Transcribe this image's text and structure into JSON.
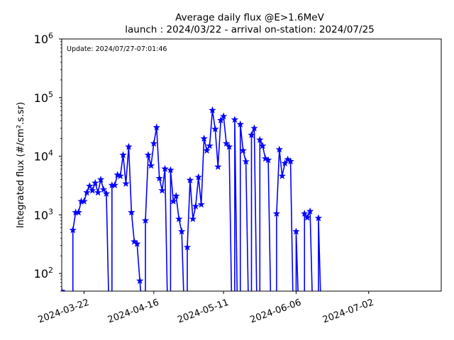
{
  "chart_data": {
    "type": "line",
    "title": "Average daily flux @E>1.6MeV",
    "subtitle": "launch : 2024/03/22 - arrival on-station: 2024/07/25",
    "ylabel": "Integrated flux (#/cm².s.sr)",
    "xlabel": "",
    "annotation": "Update: 2024/07/27-07:01:46",
    "y_scale": "log",
    "ylim": [
      50,
      1000000
    ],
    "xlim": [
      "2024-03-14",
      "2024-07-28"
    ],
    "x_ticks": [
      "2024-03-22",
      "2024-04-16",
      "2024-05-11",
      "2024-06-06",
      "2024-07-02"
    ],
    "y_ticks": [
      {
        "value": 100,
        "mantissa": "10",
        "exp": "2"
      },
      {
        "value": 1000,
        "mantissa": "10",
        "exp": "3"
      },
      {
        "value": 10000,
        "mantissa": "10",
        "exp": "4"
      },
      {
        "value": 100000,
        "mantissa": "10",
        "exp": "5"
      },
      {
        "value": 1000000,
        "mantissa": "10",
        "exp": "6"
      }
    ],
    "grid": false,
    "color": "#0000ff",
    "marker": "star",
    "series": [
      {
        "x": [
          "2024-03-14",
          "2024-03-17",
          "2024-03-18",
          "2024-03-19",
          "2024-03-20",
          "2024-03-21",
          "2024-03-22",
          "2024-03-23",
          "2024-03-24",
          "2024-03-25",
          "2024-03-26",
          "2024-03-27",
          "2024-03-28",
          "2024-03-29",
          "2024-03-30",
          "2024-03-31",
          "2024-04-01",
          "2024-04-02",
          "2024-04-03",
          "2024-04-04",
          "2024-04-05",
          "2024-04-06",
          "2024-04-07",
          "2024-04-08",
          "2024-04-09",
          "2024-04-10",
          "2024-04-11",
          "2024-04-12",
          "2024-04-13",
          "2024-04-14",
          "2024-04-15",
          "2024-04-16",
          "2024-04-17",
          "2024-04-18",
          "2024-04-19",
          "2024-04-20",
          "2024-04-21",
          "2024-04-22",
          "2024-04-23",
          "2024-04-24",
          "2024-04-25",
          "2024-04-26",
          "2024-04-27",
          "2024-04-28",
          "2024-04-29",
          "2024-04-30",
          "2024-05-01",
          "2024-05-02",
          "2024-05-03",
          "2024-05-04",
          "2024-05-05",
          "2024-05-06",
          "2024-05-07",
          "2024-05-08",
          "2024-05-09",
          "2024-05-10",
          "2024-05-11",
          "2024-05-12",
          "2024-05-13",
          "2024-05-14",
          "2024-05-15",
          "2024-05-16",
          "2024-05-17",
          "2024-05-18",
          "2024-05-19",
          "2024-05-20",
          "2024-05-21",
          "2024-05-22",
          "2024-05-23",
          "2024-05-24",
          "2024-05-25",
          "2024-05-26",
          "2024-05-27",
          "2024-05-28",
          "2024-05-29",
          "2024-05-30",
          "2024-05-31",
          "2024-06-01",
          "2024-06-02",
          "2024-06-03",
          "2024-06-04",
          "2024-06-05",
          "2024-06-06",
          "2024-06-07",
          "2024-06-08",
          "2024-06-09",
          "2024-06-10",
          "2024-06-11",
          "2024-06-12",
          "2024-06-13",
          "2024-06-14",
          "2024-06-15",
          "2024-06-16",
          "2024-06-17",
          "2024-06-18",
          "2024-06-19",
          "2024-06-20",
          "2024-06-21",
          "2024-06-22",
          "2024-06-23",
          "2024-06-24",
          "2024-06-25"
        ],
        "y": [
          50,
          null,
          550,
          1100,
          1100,
          1700,
          1700,
          2400,
          3100,
          2600,
          3500,
          2400,
          4000,
          2700,
          2300,
          null,
          3200,
          3200,
          4800,
          4600,
          10500,
          3400,
          14500,
          1100,
          350,
          320,
          75,
          null,
          800,
          10500,
          6900,
          16500,
          31000,
          4200,
          2600,
          6100,
          null,
          5800,
          1700,
          2100,
          850,
          520,
          null,
          280,
          3900,
          850,
          1400,
          4400,
          1500,
          20000,
          12500,
          15000,
          61000,
          29000,
          6600,
          41000,
          48000,
          16500,
          14500,
          null,
          42000,
          null,
          35000,
          12500,
          8100,
          null,
          23000,
          30000,
          null,
          19000,
          15000,
          9100,
          8600,
          null,
          null,
          1050,
          13000,
          4600,
          7600,
          8800,
          8200,
          null,
          520,
          null,
          null,
          1050,
          900,
          1150,
          null,
          null,
          880,
          null,
          null,
          null,
          null,
          null,
          null,
          null,
          null,
          null,
          null,
          null
        ]
      }
    ]
  }
}
